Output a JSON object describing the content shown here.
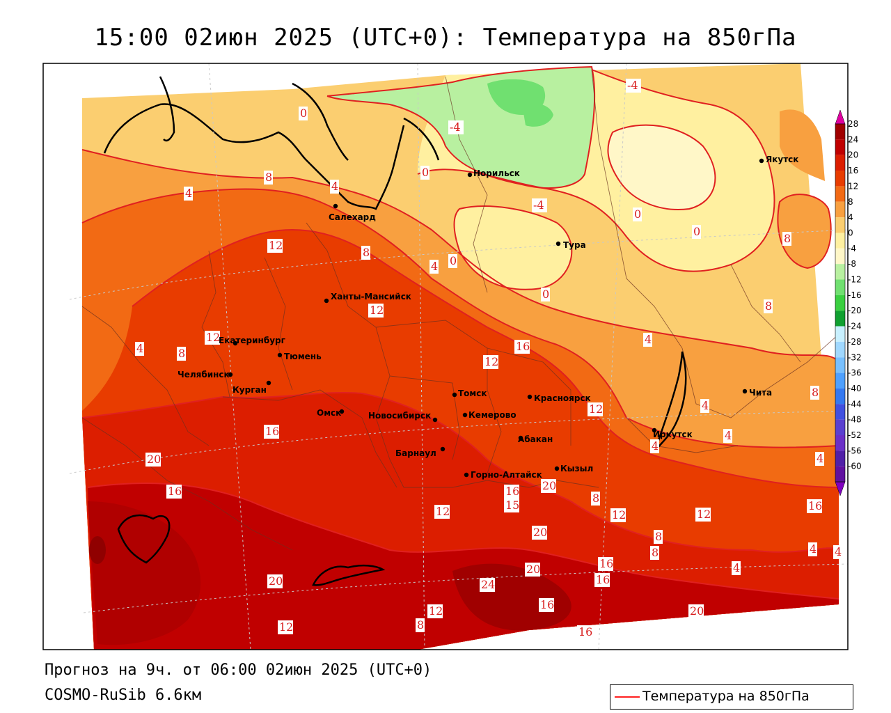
{
  "title": "15:00 02июн 2025 (UTC+0): Температура на 850гПа",
  "footer": {
    "forecast": "Прогноз на 9ч. от 06:00 02июн 2025 (UTC+0)",
    "model": "COSMO-RuSib 6.6км"
  },
  "legend": {
    "label": "Температура на 850гПа",
    "line_color": "#ff2020"
  },
  "colorbar": {
    "ticks": [
      "28",
      "24",
      "20",
      "16",
      "12",
      "8",
      "4",
      "0",
      "-4",
      "-8",
      "-12",
      "-16",
      "-20",
      "-24",
      "-28",
      "-32",
      "-36",
      "-40",
      "-44",
      "-48",
      "-52",
      "-56",
      "-60"
    ],
    "colors": [
      "#a00000",
      "#c00000",
      "#dc1e00",
      "#e83c00",
      "#f26a14",
      "#f8a040",
      "#fbce70",
      "#fff0a0",
      "#fff7c8",
      "#b8f0a0",
      "#70e070",
      "#3ad040",
      "#10a030",
      "#c8f0ff",
      "#a0d8ff",
      "#78c0ff",
      "#4ea0ff",
      "#3478f0",
      "#4050e0",
      "#5a40d0",
      "#6a30c8",
      "#5020a8",
      "#6010a0"
    ],
    "top_color": "#e000a0",
    "bottom_color": "#8000c0"
  },
  "cities": [
    {
      "name": "Норильск"
    },
    {
      "name": "Якутск"
    },
    {
      "name": "Салехард"
    },
    {
      "name": "Тура"
    },
    {
      "name": "Ханты-Мансийск"
    },
    {
      "name": "Екатеринбург"
    },
    {
      "name": "Тюмень"
    },
    {
      "name": "Челябинск"
    },
    {
      "name": "Курган"
    },
    {
      "name": "Омск"
    },
    {
      "name": "Новосибирск"
    },
    {
      "name": "Томск"
    },
    {
      "name": "Красноярск"
    },
    {
      "name": "Кемерово"
    },
    {
      "name": "Барнаул"
    },
    {
      "name": "Абакан"
    },
    {
      "name": "Иркутск"
    },
    {
      "name": "Чита"
    },
    {
      "name": "Горно-Алтайск"
    },
    {
      "name": "Кызыл"
    }
  ],
  "isotherm_labels": [
    "-4",
    "0",
    "-4",
    "0",
    "-4",
    "0",
    "0",
    "4",
    "8",
    "4",
    "8",
    "12",
    "8",
    "4",
    "0",
    "0",
    "8",
    "12",
    "4",
    "12",
    "8",
    "12",
    "4",
    "4",
    "4",
    "4",
    "4",
    "8",
    "16",
    "12",
    "16",
    "20",
    "16",
    "12",
    "16",
    "20",
    "15",
    "20",
    "16",
    "20",
    "24",
    "20",
    "16",
    "16",
    "20",
    "16",
    "12",
    "8",
    "12",
    "8",
    "12",
    "8",
    "12",
    "8",
    "16",
    "4",
    "4",
    "4"
  ]
}
